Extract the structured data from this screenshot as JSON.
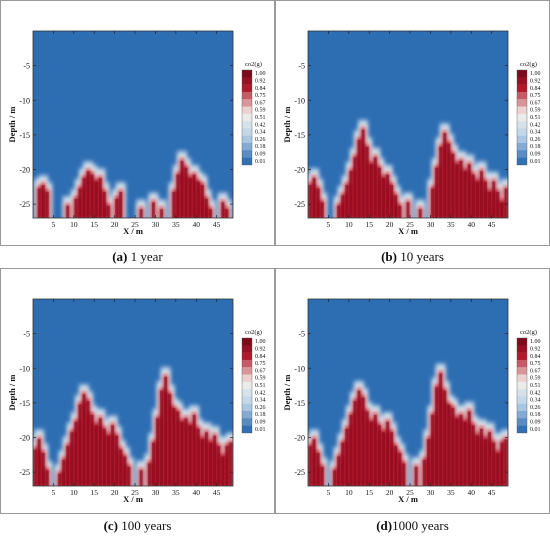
{
  "figure": {
    "panels": [
      {
        "tag": "(a)",
        "text": " 1 year"
      },
      {
        "tag": "(b)",
        "text": " 10 years"
      },
      {
        "tag": "(c)",
        "text": " 100 years"
      },
      {
        "tag": "(d)",
        "text": "1000 years"
      }
    ]
  },
  "colors": {
    "background_field": "#2d6db2",
    "plume_low": "#bcd4ea",
    "plume_mid": "#f4efe9",
    "plume_high": "#b2182b",
    "plume_core": "#7d0a1b"
  },
  "chart_data": [
    {
      "type": "heatmap",
      "title": "",
      "xlabel": "X / m",
      "ylabel": "Depth / m",
      "xlim": [
        0,
        49
      ],
      "ylim": [
        -27,
        0
      ],
      "x_ticks": [
        5,
        10,
        15,
        20,
        25,
        30,
        35,
        40,
        45
      ],
      "y_ticks": [
        -5,
        -10,
        -15,
        -20,
        -25
      ],
      "colorbar": {
        "label": "co2(g)",
        "levels": [
          "1.00",
          "0.92",
          "0.84",
          "0.75",
          "0.67",
          "0.59",
          "0.51",
          "0.42",
          "0.34",
          "0.26",
          "0.18",
          "0.09",
          "0.01"
        ]
      },
      "plume_columns": [
        {
          "x": 1.5,
          "top": -22.5
        },
        {
          "x": 2.5,
          "top": -22.0
        },
        {
          "x": 3.5,
          "top": -23.0
        },
        {
          "x": 8.5,
          "top": -25.0
        },
        {
          "x": 10.5,
          "top": -24.0
        },
        {
          "x": 11.5,
          "top": -22.5
        },
        {
          "x": 12.5,
          "top": -21.0
        },
        {
          "x": 13.5,
          "top": -20.0
        },
        {
          "x": 14.5,
          "top": -20.5
        },
        {
          "x": 15.5,
          "top": -21.5
        },
        {
          "x": 16.5,
          "top": -21.0
        },
        {
          "x": 17.5,
          "top": -23.0
        },
        {
          "x": 18.5,
          "top": -25.0
        },
        {
          "x": 20.5,
          "top": -24.0
        },
        {
          "x": 21.5,
          "top": -23.0
        },
        {
          "x": 26.5,
          "top": -25.5
        },
        {
          "x": 29.5,
          "top": -24.5
        },
        {
          "x": 31.5,
          "top": -25.5
        },
        {
          "x": 34.5,
          "top": -23.0
        },
        {
          "x": 35.5,
          "top": -20.5
        },
        {
          "x": 36.5,
          "top": -18.5
        },
        {
          "x": 37.5,
          "top": -19.5
        },
        {
          "x": 38.5,
          "top": -21.0
        },
        {
          "x": 39.5,
          "top": -20.5
        },
        {
          "x": 40.5,
          "top": -21.5
        },
        {
          "x": 41.5,
          "top": -22.0
        },
        {
          "x": 42.5,
          "top": -24.0
        },
        {
          "x": 43.5,
          "top": -25.5
        },
        {
          "x": 46.5,
          "top": -24.5
        },
        {
          "x": 47.5,
          "top": -25.5
        }
      ]
    },
    {
      "type": "heatmap",
      "title": "",
      "xlabel": "X / m",
      "ylabel": "Depth / m",
      "xlim": [
        0,
        49
      ],
      "ylim": [
        -27,
        0
      ],
      "x_ticks": [
        5,
        10,
        15,
        20,
        25,
        30,
        35,
        40,
        45
      ],
      "y_ticks": [
        -5,
        -10,
        -15,
        -20,
        -25
      ],
      "colorbar": {
        "label": "co2(g)",
        "levels": [
          "1.00",
          "0.92",
          "0.84",
          "0.75",
          "0.67",
          "0.59",
          "0.51",
          "0.42",
          "0.34",
          "0.26",
          "0.18",
          "0.09",
          "0.01"
        ]
      },
      "plume_columns": [
        {
          "x": 0.5,
          "top": -22.0
        },
        {
          "x": 1.5,
          "top": -21.0
        },
        {
          "x": 2.5,
          "top": -22.5
        },
        {
          "x": 3.5,
          "top": -24.5
        },
        {
          "x": 7.5,
          "top": -25.0
        },
        {
          "x": 8.5,
          "top": -23.5
        },
        {
          "x": 9.5,
          "top": -22.0
        },
        {
          "x": 10.5,
          "top": -20.0
        },
        {
          "x": 11.5,
          "top": -18.0
        },
        {
          "x": 12.5,
          "top": -15.5
        },
        {
          "x": 13.5,
          "top": -14.0
        },
        {
          "x": 14.5,
          "top": -16.5
        },
        {
          "x": 15.5,
          "top": -19.0
        },
        {
          "x": 16.5,
          "top": -18.0
        },
        {
          "x": 17.5,
          "top": -19.5
        },
        {
          "x": 18.5,
          "top": -21.0
        },
        {
          "x": 19.5,
          "top": -20.5
        },
        {
          "x": 20.5,
          "top": -22.0
        },
        {
          "x": 21.5,
          "top": -23.5
        },
        {
          "x": 22.5,
          "top": -25.0
        },
        {
          "x": 24.5,
          "top": -24.5
        },
        {
          "x": 27.5,
          "top": -25.5
        },
        {
          "x": 30.5,
          "top": -22.5
        },
        {
          "x": 31.5,
          "top": -19.5
        },
        {
          "x": 32.5,
          "top": -16.5
        },
        {
          "x": 33.5,
          "top": -14.5
        },
        {
          "x": 34.5,
          "top": -16.0
        },
        {
          "x": 35.5,
          "top": -17.5
        },
        {
          "x": 36.5,
          "top": -19.0
        },
        {
          "x": 37.5,
          "top": -18.5
        },
        {
          "x": 38.5,
          "top": -20.0
        },
        {
          "x": 39.5,
          "top": -19.0
        },
        {
          "x": 40.5,
          "top": -20.5
        },
        {
          "x": 41.5,
          "top": -21.5
        },
        {
          "x": 42.5,
          "top": -20.0
        },
        {
          "x": 43.5,
          "top": -21.5
        },
        {
          "x": 44.5,
          "top": -23.0
        },
        {
          "x": 45.5,
          "top": -21.5
        },
        {
          "x": 46.5,
          "top": -23.0
        },
        {
          "x": 47.5,
          "top": -24.5
        },
        {
          "x": 48.5,
          "top": -22.5
        }
      ]
    },
    {
      "type": "heatmap",
      "title": "",
      "xlabel": "X / m",
      "ylabel": "Depth / m",
      "xlim": [
        0,
        49
      ],
      "ylim": [
        -27,
        0
      ],
      "x_ticks": [
        5,
        10,
        15,
        20,
        25,
        30,
        35,
        40,
        45
      ],
      "y_ticks": [
        -5,
        -10,
        -15,
        -20,
        -25
      ],
      "colorbar": {
        "label": "co2(g)",
        "levels": [
          "1.00",
          "0.92",
          "0.84",
          "0.75",
          "0.67",
          "0.59",
          "0.51",
          "0.42",
          "0.34",
          "0.26",
          "0.18",
          "0.09",
          "0.01"
        ]
      },
      "plume_columns": [
        {
          "x": 0.5,
          "top": -21.5
        },
        {
          "x": 1.5,
          "top": -20.0
        },
        {
          "x": 2.5,
          "top": -22.0
        },
        {
          "x": 3.5,
          "top": -24.5
        },
        {
          "x": 6.5,
          "top": -25.0
        },
        {
          "x": 7.5,
          "top": -23.0
        },
        {
          "x": 8.5,
          "top": -21.0
        },
        {
          "x": 9.5,
          "top": -19.0
        },
        {
          "x": 10.5,
          "top": -17.5
        },
        {
          "x": 11.5,
          "top": -15.0
        },
        {
          "x": 12.5,
          "top": -13.5
        },
        {
          "x": 13.5,
          "top": -14.5
        },
        {
          "x": 14.5,
          "top": -16.5
        },
        {
          "x": 15.5,
          "top": -18.0
        },
        {
          "x": 16.5,
          "top": -17.0
        },
        {
          "x": 17.5,
          "top": -18.5
        },
        {
          "x": 18.5,
          "top": -19.5
        },
        {
          "x": 19.5,
          "top": -18.0
        },
        {
          "x": 20.5,
          "top": -19.5
        },
        {
          "x": 21.5,
          "top": -21.5
        },
        {
          "x": 22.5,
          "top": -22.5
        },
        {
          "x": 23.5,
          "top": -24.0
        },
        {
          "x": 26.5,
          "top": -24.5
        },
        {
          "x": 28.5,
          "top": -23.5
        },
        {
          "x": 29.5,
          "top": -20.5
        },
        {
          "x": 30.5,
          "top": -17.0
        },
        {
          "x": 31.5,
          "top": -13.0
        },
        {
          "x": 32.5,
          "top": -11.0
        },
        {
          "x": 33.5,
          "top": -13.5
        },
        {
          "x": 34.5,
          "top": -15.5
        },
        {
          "x": 35.5,
          "top": -16.0
        },
        {
          "x": 36.5,
          "top": -17.5
        },
        {
          "x": 37.5,
          "top": -17.0
        },
        {
          "x": 38.5,
          "top": -18.0
        },
        {
          "x": 39.5,
          "top": -16.5
        },
        {
          "x": 40.5,
          "top": -18.5
        },
        {
          "x": 41.5,
          "top": -20.0
        },
        {
          "x": 42.5,
          "top": -19.0
        },
        {
          "x": 43.5,
          "top": -20.5
        },
        {
          "x": 44.5,
          "top": -19.5
        },
        {
          "x": 45.5,
          "top": -21.0
        },
        {
          "x": 46.5,
          "top": -22.5
        },
        {
          "x": 47.5,
          "top": -21.0
        },
        {
          "x": 48.5,
          "top": -20.5
        }
      ]
    },
    {
      "type": "heatmap",
      "title": "",
      "xlabel": "X / m",
      "ylabel": "Depth / m",
      "xlim": [
        0,
        49
      ],
      "ylim": [
        -27,
        0
      ],
      "x_ticks": [
        5,
        10,
        15,
        20,
        25,
        30,
        35,
        40,
        45
      ],
      "y_ticks": [
        -5,
        -10,
        -15,
        -20,
        -25
      ],
      "colorbar": {
        "label": "co2(g)",
        "levels": [
          "1.00",
          "0.92",
          "0.84",
          "0.75",
          "0.67",
          "0.59",
          "0.51",
          "0.42",
          "0.34",
          "0.26",
          "0.18",
          "0.09",
          "0.01"
        ]
      },
      "plume_columns": [
        {
          "x": 0.5,
          "top": -21.0
        },
        {
          "x": 1.5,
          "top": -20.0
        },
        {
          "x": 2.5,
          "top": -22.0
        },
        {
          "x": 3.5,
          "top": -24.0
        },
        {
          "x": 6.5,
          "top": -24.5
        },
        {
          "x": 7.5,
          "top": -22.5
        },
        {
          "x": 8.5,
          "top": -20.5
        },
        {
          "x": 9.5,
          "top": -18.5
        },
        {
          "x": 10.5,
          "top": -16.5
        },
        {
          "x": 11.5,
          "top": -14.5
        },
        {
          "x": 12.5,
          "top": -13.0
        },
        {
          "x": 13.5,
          "top": -14.0
        },
        {
          "x": 14.5,
          "top": -16.0
        },
        {
          "x": 15.5,
          "top": -17.5
        },
        {
          "x": 16.5,
          "top": -16.5
        },
        {
          "x": 17.5,
          "top": -18.0
        },
        {
          "x": 18.5,
          "top": -19.0
        },
        {
          "x": 19.5,
          "top": -17.5
        },
        {
          "x": 20.5,
          "top": -19.0
        },
        {
          "x": 21.5,
          "top": -21.0
        },
        {
          "x": 22.5,
          "top": -22.0
        },
        {
          "x": 23.5,
          "top": -23.5
        },
        {
          "x": 26.5,
          "top": -24.0
        },
        {
          "x": 28.5,
          "top": -23.0
        },
        {
          "x": 29.5,
          "top": -20.0
        },
        {
          "x": 30.5,
          "top": -16.5
        },
        {
          "x": 31.5,
          "top": -12.5
        },
        {
          "x": 32.5,
          "top": -10.5
        },
        {
          "x": 33.5,
          "top": -13.0
        },
        {
          "x": 34.5,
          "top": -15.0
        },
        {
          "x": 35.5,
          "top": -15.5
        },
        {
          "x": 36.5,
          "top": -17.0
        },
        {
          "x": 37.5,
          "top": -16.5
        },
        {
          "x": 38.5,
          "top": -17.5
        },
        {
          "x": 39.5,
          "top": -16.0
        },
        {
          "x": 40.5,
          "top": -18.0
        },
        {
          "x": 41.5,
          "top": -19.5
        },
        {
          "x": 42.5,
          "top": -18.5
        },
        {
          "x": 43.5,
          "top": -20.0
        },
        {
          "x": 44.5,
          "top": -19.0
        },
        {
          "x": 45.5,
          "top": -20.5
        },
        {
          "x": 46.5,
          "top": -22.0
        },
        {
          "x": 47.5,
          "top": -20.5
        },
        {
          "x": 48.5,
          "top": -20.0
        }
      ]
    }
  ]
}
